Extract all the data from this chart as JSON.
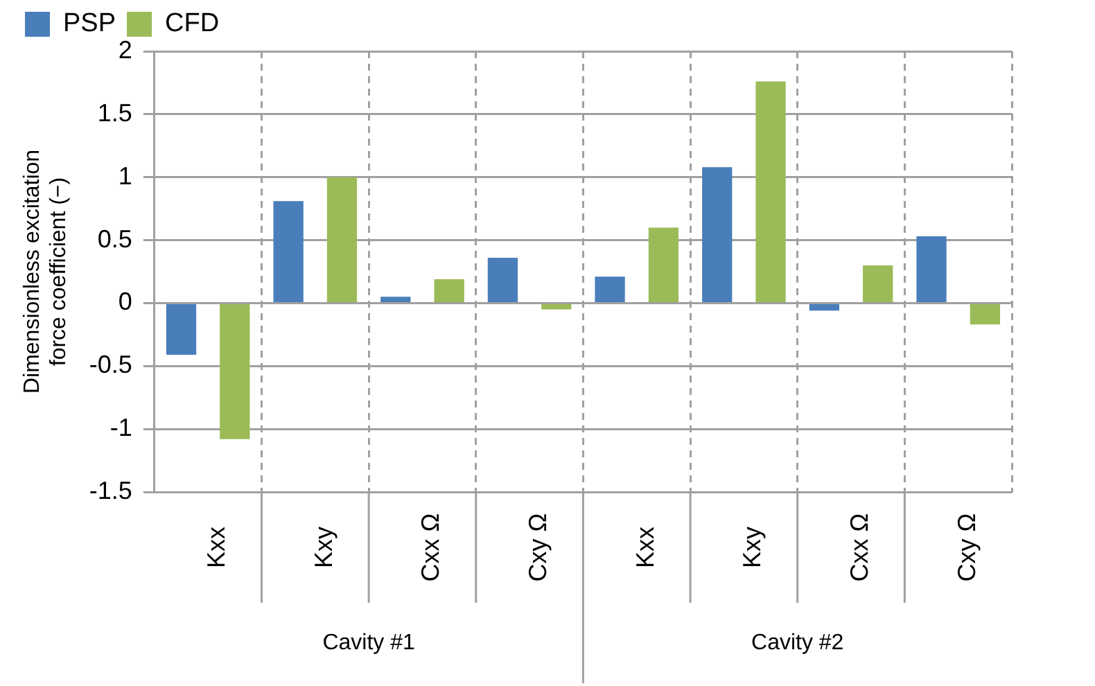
{
  "chart_data": {
    "type": "bar",
    "ylabel": "Dimensionless excitation force coefficient (−)",
    "categories": [
      "Kxx",
      "Kxy",
      "Cxx Ω",
      "Cxy Ω",
      "Kxx",
      "Kxy",
      "Cxx Ω",
      "Cxy Ω"
    ],
    "series": [
      {
        "name": "PSP",
        "color": "#4a7ebb",
        "values": [
          -0.41,
          0.81,
          0.05,
          0.36,
          0.21,
          1.08,
          -0.06,
          0.53
        ]
      },
      {
        "name": "CFD",
        "color": "#9bbb59",
        "values": [
          -1.08,
          1.0,
          0.19,
          -0.05,
          0.6,
          1.76,
          0.3,
          -0.17
        ]
      }
    ],
    "annotations": [
      "Cavity #1",
      "Cavity #2"
    ],
    "ylim": [
      -1.5,
      2
    ],
    "yticks": [
      -1.5,
      -1,
      -0.5,
      0,
      0.5,
      1,
      1.5,
      2
    ],
    "grid": true,
    "legend": "top"
  }
}
